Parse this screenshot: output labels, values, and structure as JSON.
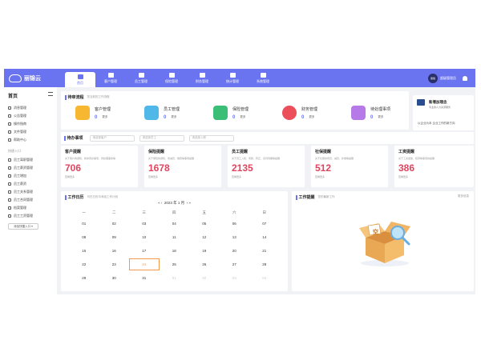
{
  "header": {
    "logo_text": "丽锦云",
    "nav": [
      {
        "label": "首页",
        "icon": "home-icon",
        "active": true
      },
      {
        "label": "客户管理",
        "icon": "monitor-icon",
        "active": false
      },
      {
        "label": "员工管理",
        "icon": "user-icon",
        "active": false
      },
      {
        "label": "保险管理",
        "icon": "shield-icon",
        "active": false
      },
      {
        "label": "财务管理",
        "icon": "wallet-icon",
        "active": false
      },
      {
        "label": "统计管理",
        "icon": "chart-icon",
        "active": false
      },
      {
        "label": "系统管理",
        "icon": "gear-icon",
        "active": false
      }
    ],
    "avatar_text": "丽锦",
    "user_name": "超级管理员"
  },
  "sidebar": {
    "title": "首页",
    "items": [
      "消息管理",
      "公告管理",
      "操作指南",
      "文件管理",
      "帮助中心"
    ],
    "group_label": "快捷入口",
    "shortcuts": [
      "员工离职管理",
      "员工薪资管理",
      "员工增加",
      "员工薪资",
      "员工关系管理",
      "员工合同管理",
      "档案管理",
      "员工工资管理"
    ],
    "add_label": "添加快捷入口"
  },
  "todo": {
    "title": "待审流程",
    "subtitle": "您当前的工作流程",
    "items": [
      {
        "name": "客户管理",
        "count": "0",
        "more": "更多",
        "color": "#f7b731"
      },
      {
        "name": "员工管理",
        "count": "0",
        "more": "更多",
        "color": "#4fb8e8"
      },
      {
        "name": "保险管理",
        "count": "0",
        "more": "更多",
        "color": "#3bbf77"
      },
      {
        "name": "财务管理",
        "count": "0",
        "more": "更多",
        "color": "#ec4e5a"
      },
      {
        "name": "待处理事项",
        "count": "0",
        "more": "更多",
        "color": "#b57ae8"
      }
    ]
  },
  "notice": {
    "title": "新增加理念",
    "subtitle": "专业的人力资源服务",
    "footer": "以企业为本 企业工作的新方向"
  },
  "filter": {
    "title": "待办事项",
    "placeholders": [
      "请选择客户",
      "请选择员工",
      "请选择入职"
    ]
  },
  "stats": [
    {
      "title": "客户提醒",
      "desc": "关于客户的通知、新的待办事项、待处理事务等",
      "value": "706",
      "more": "查看更多"
    },
    {
      "title": "保险提醒",
      "desc": "关于保险的通知、增减员、缴费等事项提醒",
      "value": "1678",
      "more": "查看更多"
    },
    {
      "title": "员工提醒",
      "desc": "关于员工入职、离职、转正、合同到期等提醒",
      "value": "2135",
      "more": "查看更多"
    },
    {
      "title": "社保提醒",
      "desc": "关于社保的增员、减员、补缴等提醒",
      "value": "512",
      "more": "查看更多"
    },
    {
      "title": "工资提醒",
      "desc": "关于工资发放、核算等事项的提醒",
      "value": "386",
      "more": "查看更多"
    }
  ],
  "calendar": {
    "title": "工作日历",
    "subtitle": "可在日历中添加工作计划",
    "month": "2023 年 1 月",
    "weekdays": [
      "一",
      "二",
      "三",
      "四",
      "五",
      "六",
      "日"
    ],
    "rows": [
      [
        "01",
        "02",
        "03",
        "04",
        "05",
        "06",
        "07"
      ],
      [
        "08",
        "09",
        "10",
        "11",
        "12",
        "13",
        "14"
      ],
      [
        "15",
        "16",
        "17",
        "18",
        "19",
        "20",
        "21"
      ],
      [
        "22",
        "23",
        "24",
        "25",
        "26",
        "27",
        "28"
      ],
      [
        "29",
        "30",
        "31",
        "01",
        "02",
        "03",
        "04"
      ]
    ],
    "today": "24"
  },
  "work": {
    "title": "工作提醒",
    "subtitle": "您的最新工作",
    "more": "更多信息",
    "empty_text": "空"
  }
}
